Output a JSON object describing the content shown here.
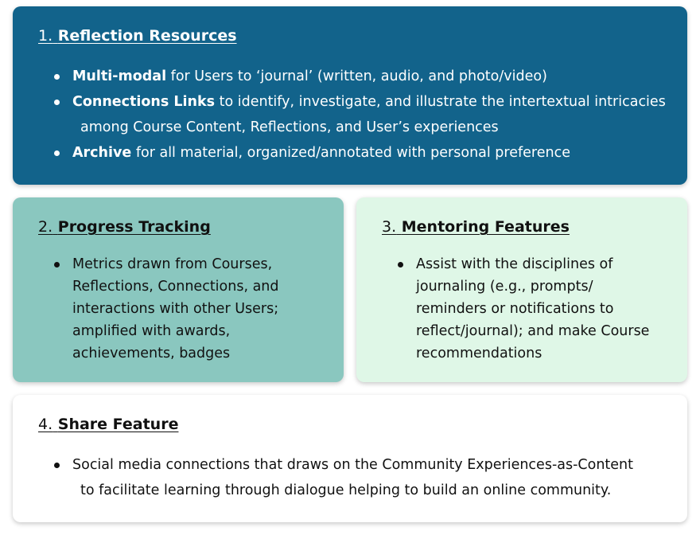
{
  "cards": [
    {
      "number": "1.",
      "title": "Reflection Resources",
      "bullets": [
        {
          "bold": "Multi-modal",
          "text": " for Users to ‘journal’ (written, audio, and photo/video)",
          "cont": ""
        },
        {
          "bold": "Connections Links",
          "text": " to identify, investigate, and illustrate the intertextual intricacies",
          "cont": "among Course Content, Reflections, and User’s experiences"
        },
        {
          "bold": "Archive",
          "text": " for all material, organized/annotated with personal preference",
          "cont": ""
        }
      ]
    },
    {
      "number": "2.",
      "title": "Progress Tracking",
      "bullets": [
        {
          "text": "Metrics drawn from Courses, Reflections, Connections, and interactions with other Users; amplified with awards, achievements, badges"
        }
      ]
    },
    {
      "number": "3.",
      "title": "Mentoring Features",
      "bullets": [
        {
          "text": "Assist with the disciplines of journaling (e.g., prompts/ reminders or notifications to reflect/journal); and make Course recommendations"
        }
      ]
    },
    {
      "number": "4.",
      "title": "Share Feature",
      "bullets": [
        {
          "text": "Social media connections that draws on the Community Experiences-as-Content",
          "cont": "to facilitate learning through dialogue helping to build an online community."
        }
      ]
    }
  ],
  "colors": {
    "card1_bg": "#12638b",
    "card2_bg": "#8ac7bf",
    "card3_bg": "#dff7e7",
    "card4_bg": "#ffffff"
  }
}
